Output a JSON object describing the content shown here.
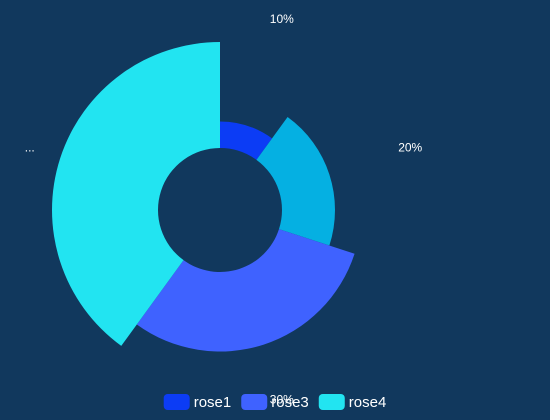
{
  "chart_data": {
    "type": "rose",
    "categories": [
      "rose1",
      null,
      "rose3",
      "rose4"
    ],
    "values": [
      10,
      20,
      30,
      40
    ],
    "value_labels": [
      "10%",
      "20%",
      "30%",
      "..."
    ],
    "colors": [
      "#0c3cf5",
      "#05b0e2",
      "#3f62ff",
      "#22e4f1"
    ]
  }
}
